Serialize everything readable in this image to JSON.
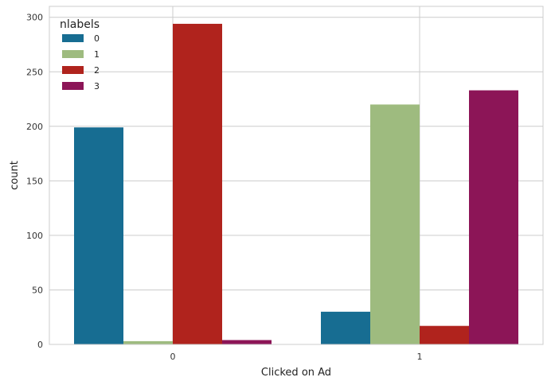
{
  "chart_data": {
    "type": "bar",
    "xlabel": "Clicked on Ad",
    "ylabel": "count",
    "categories": [
      "0",
      "1"
    ],
    "ylim": [
      0,
      310
    ],
    "yticks": [
      0,
      50,
      100,
      150,
      200,
      250,
      300
    ],
    "grid": true,
    "legend": {
      "title": "nlabels",
      "placement": "top-left"
    },
    "series": [
      {
        "name": "0",
        "values": [
          199,
          30
        ],
        "color": "#176d92"
      },
      {
        "name": "1",
        "values": [
          3,
          220
        ],
        "color": "#9ebb7f"
      },
      {
        "name": "2",
        "values": [
          294,
          17
        ],
        "color": "#b0231d"
      },
      {
        "name": "3",
        "values": [
          4,
          233
        ],
        "color": "#8c1557"
      }
    ]
  }
}
